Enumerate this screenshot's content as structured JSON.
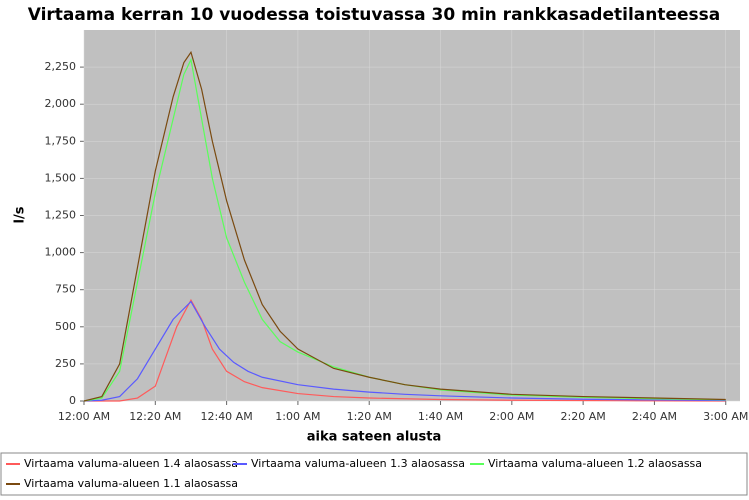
{
  "chart_data": {
    "type": "line",
    "title": "Virtaama kerran 10 vuodessa toistuvassa 30 min rankkasadetilanteessa",
    "x_label": "aika sateen alusta",
    "y_label": "l/s",
    "xlim": [
      0,
      184
    ],
    "ylim": [
      0,
      2500
    ],
    "xticks": [
      {
        "value": 0,
        "label": "12:00 AM"
      },
      {
        "value": 20,
        "label": "12:20 AM"
      },
      {
        "value": 40,
        "label": "12:40 AM"
      },
      {
        "value": 60,
        "label": "1:00 AM"
      },
      {
        "value": 80,
        "label": "1:20 AM"
      },
      {
        "value": 100,
        "label": "1:40 AM"
      },
      {
        "value": 120,
        "label": "2:00 AM"
      },
      {
        "value": 140,
        "label": "2:20 AM"
      },
      {
        "value": 160,
        "label": "2:40 AM"
      },
      {
        "value": 180,
        "label": "3:00 AM"
      }
    ],
    "yticks": [
      0,
      250,
      500,
      750,
      {
        "value": 1000,
        "label": "1,000"
      },
      {
        "value": 1250,
        "label": "1,250"
      },
      {
        "value": 1500,
        "label": "1,500"
      },
      {
        "value": 1750,
        "label": "1,750"
      },
      {
        "value": 2000,
        "label": "2,000"
      },
      {
        "value": 2250,
        "label": "2,250"
      }
    ],
    "grid": true,
    "series": [
      {
        "name": "Virtaama valuma-alueen 1.4 alaosassa",
        "color": "#ff5a5a",
        "x": [
          0,
          10,
          15,
          20,
          23,
          26,
          30,
          33,
          36,
          40,
          45,
          50,
          60,
          70,
          80,
          100,
          120,
          150,
          180
        ],
        "values": [
          0,
          0,
          20,
          100,
          300,
          500,
          680,
          550,
          350,
          200,
          130,
          90,
          50,
          30,
          20,
          10,
          5,
          2,
          0
        ]
      },
      {
        "name": "Virtaama valuma-alueen 1.3 alaosassa",
        "color": "#5a5aff",
        "x": [
          0,
          5,
          10,
          15,
          20,
          25,
          30,
          34,
          38,
          42,
          46,
          50,
          60,
          70,
          80,
          90,
          100,
          120,
          140,
          160,
          180
        ],
        "values": [
          0,
          5,
          30,
          150,
          350,
          550,
          670,
          500,
          350,
          260,
          200,
          160,
          110,
          80,
          60,
          45,
          35,
          20,
          12,
          7,
          3
        ]
      },
      {
        "name": "Virtaama valuma-alueen 1.2 alaosassa",
        "color": "#5aff5a",
        "x": [
          0,
          5,
          10,
          15,
          20,
          25,
          28,
          30,
          33,
          36,
          40,
          45,
          50,
          55,
          60,
          70,
          80,
          90,
          100,
          120,
          140,
          160,
          180
        ],
        "values": [
          0,
          20,
          200,
          800,
          1400,
          1900,
          2200,
          2300,
          1900,
          1500,
          1100,
          800,
          550,
          400,
          330,
          230,
          160,
          110,
          75,
          40,
          25,
          15,
          8
        ]
      },
      {
        "name": "Virtaama valuma-alueen 1.1 alaosassa",
        "color": "#7a4a10",
        "x": [
          0,
          5,
          10,
          15,
          20,
          25,
          28,
          30,
          33,
          36,
          40,
          45,
          50,
          55,
          60,
          70,
          80,
          90,
          100,
          120,
          140,
          160,
          180
        ],
        "values": [
          0,
          30,
          250,
          900,
          1550,
          2050,
          2280,
          2350,
          2100,
          1750,
          1350,
          950,
          650,
          470,
          350,
          220,
          160,
          110,
          80,
          45,
          30,
          20,
          10
        ]
      }
    ]
  }
}
